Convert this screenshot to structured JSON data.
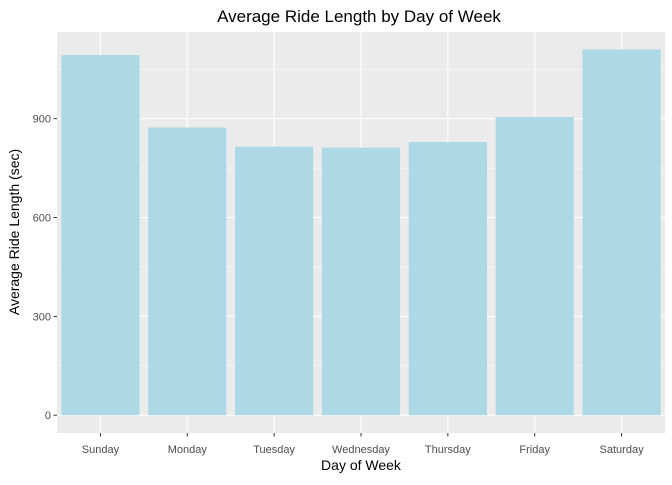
{
  "chart_data": {
    "type": "bar",
    "title": "Average Ride Length by Day of Week",
    "xlabel": "Day of Week",
    "ylabel": "Average Ride Length (sec)",
    "categories": [
      "Sunday",
      "Monday",
      "Tuesday",
      "Wednesday",
      "Thursday",
      "Friday",
      "Saturday"
    ],
    "values": [
      1093,
      873,
      815,
      812,
      829,
      905,
      1110
    ],
    "ylim": [
      -54,
      1163
    ],
    "yticks": [
      0,
      300,
      600,
      900
    ],
    "grid": true,
    "legend": "none",
    "colors": {
      "bar": "#add8e6",
      "panel": "#ebebeb",
      "grid": "#ffffff",
      "text": "#000000",
      "tick_text": "#4d4d4d"
    }
  }
}
